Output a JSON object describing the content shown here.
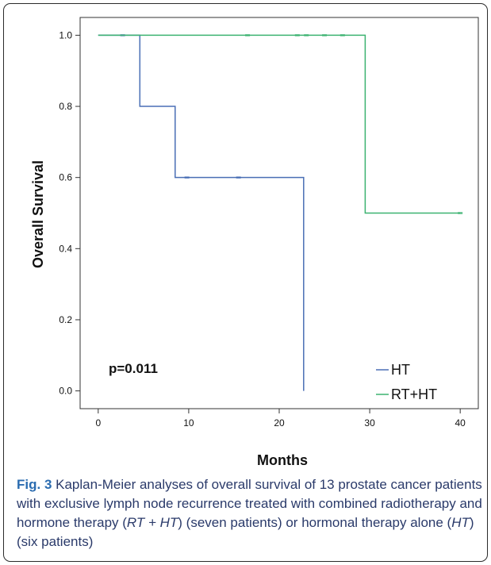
{
  "chart_data": {
    "type": "line",
    "subtype": "kaplan-meier step",
    "xlabel": "Months",
    "ylabel": "Overall Survival",
    "xlim": [
      -2,
      42
    ],
    "ylim": [
      -0.05,
      1.05
    ],
    "x_ticks": [
      0,
      10,
      20,
      30,
      40
    ],
    "x_tick_labels": [
      "0",
      "10",
      "20",
      "30",
      "40"
    ],
    "y_ticks": [
      0.0,
      0.2,
      0.4,
      0.6,
      0.8,
      1.0
    ],
    "y_tick_labels": [
      "0.0",
      "0.2",
      "0.4",
      "0.6",
      "0.8",
      "1.0"
    ],
    "grid": false,
    "legend_position": "bottom-right",
    "annotation": "p=0.011",
    "series": [
      {
        "name": "HT",
        "color": "#4a6fb5",
        "steps": [
          [
            0,
            1.0
          ],
          [
            4.6,
            0.8
          ],
          [
            8.5,
            0.6
          ],
          [
            22.7,
            0.0
          ]
        ],
        "end_x": 22.7,
        "censored": [
          [
            2.7,
            1.0
          ],
          [
            9.8,
            0.6
          ],
          [
            15.5,
            0.6
          ]
        ]
      },
      {
        "name": "RT+HT",
        "color": "#3cb371",
        "steps": [
          [
            0,
            1.0
          ],
          [
            29.5,
            0.5
          ]
        ],
        "end_x": 40.0,
        "censored": [
          [
            16.5,
            1.0
          ],
          [
            22.0,
            1.0
          ],
          [
            23.0,
            1.0
          ],
          [
            25.0,
            1.0
          ],
          [
            27.0,
            1.0
          ],
          [
            40.0,
            0.5
          ]
        ]
      }
    ]
  },
  "caption": {
    "label": "Fig. 3",
    "text_1": " Kaplan-Meier analyses of overall survival of 13 prostate cancer patients with exclusive lymph node recurrence treated with combined radiotherapy and hormone therapy (",
    "italic_1": "RT + HT",
    "text_2": ") (seven patients) or hormonal therapy alone (",
    "italic_2": "HT",
    "text_3": ") (six patients)"
  }
}
